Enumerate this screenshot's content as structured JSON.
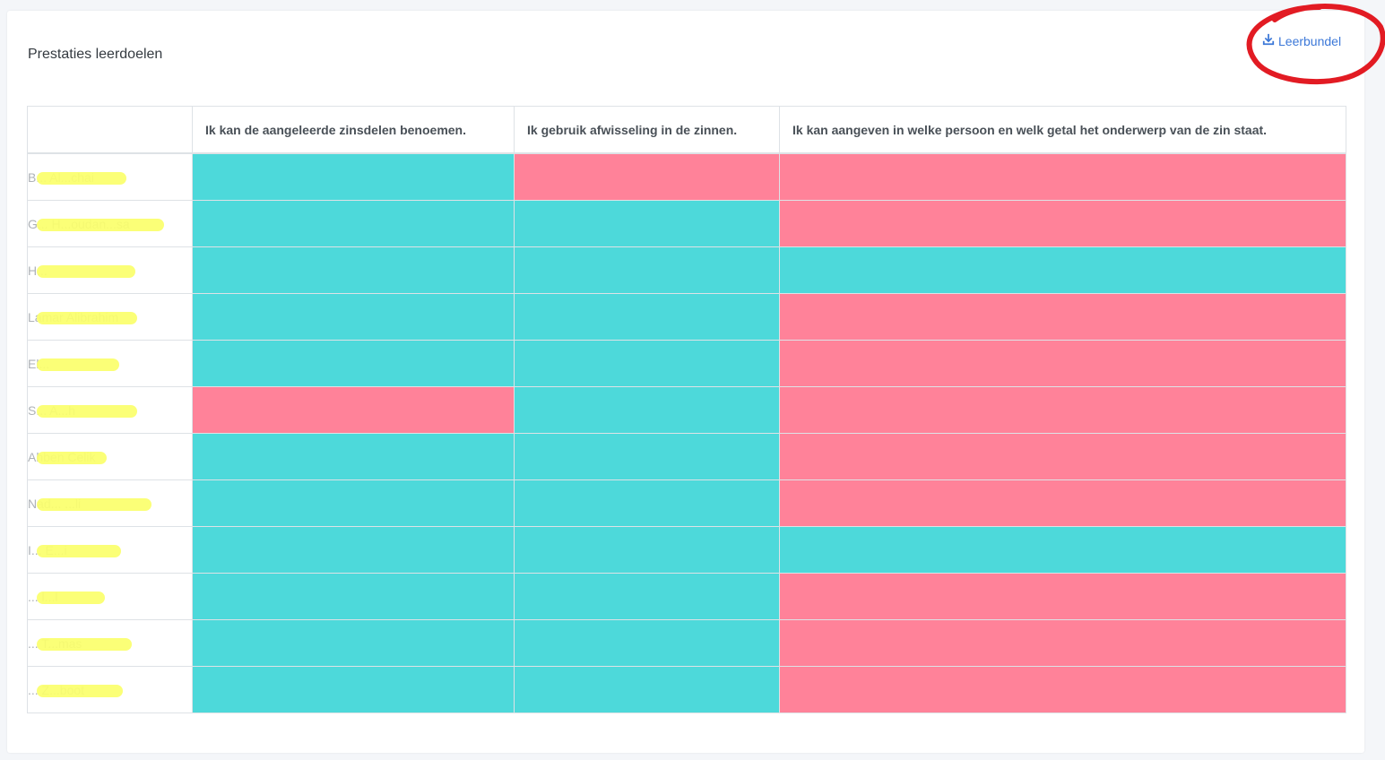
{
  "panel": {
    "title": "Prestaties leerdoelen",
    "download_label": "Leerbundel",
    "download_icon": "download-icon"
  },
  "colors": {
    "achieved": "#4dd9da",
    "not_achieved": "#ff8299",
    "link": "#3c78d8",
    "annotation": "#e21b23"
  },
  "table": {
    "columns": [
      "",
      "Ik kan de aangeleerde zinsdelen benoemen.",
      "Ik gebruik afwisseling in de zinnen.",
      "Ik kan aangeven in welke persoon en welk getal het onderwerp van de zin staat."
    ],
    "rows": [
      {
        "name": "B... Al...chai",
        "results": [
          "achieved",
          "not_achieved",
          "not_achieved"
        ]
      },
      {
        "name": "G... H...oudan...sa",
        "results": [
          "achieved",
          "achieved",
          "not_achieved"
        ]
      },
      {
        "name": "H...",
        "results": [
          "achieved",
          "achieved",
          "achieved"
        ]
      },
      {
        "name": "Lamar Alibrahim",
        "results": [
          "achieved",
          "achieved",
          "not_achieved"
        ]
      },
      {
        "name": "El...",
        "results": [
          "achieved",
          "achieved",
          "not_achieved"
        ]
      },
      {
        "name": "S... A...h",
        "results": [
          "not_achieved",
          "achieved",
          "not_achieved"
        ]
      },
      {
        "name": "Ahben Celik",
        "results": [
          "achieved",
          "achieved",
          "not_achieved"
        ]
      },
      {
        "name": "Nad... ...li",
        "results": [
          "achieved",
          "achieved",
          "not_achieved"
        ]
      },
      {
        "name": "I... E...i",
        "results": [
          "achieved",
          "achieved",
          "achieved"
        ]
      },
      {
        "name": "... l...l",
        "results": [
          "achieved",
          "achieved",
          "not_achieved"
        ]
      },
      {
        "name": "... T...mas",
        "results": [
          "achieved",
          "achieved",
          "not_achieved"
        ]
      },
      {
        "name": "... Z...boot",
        "results": [
          "achieved",
          "achieved",
          "not_achieved"
        ]
      }
    ]
  }
}
